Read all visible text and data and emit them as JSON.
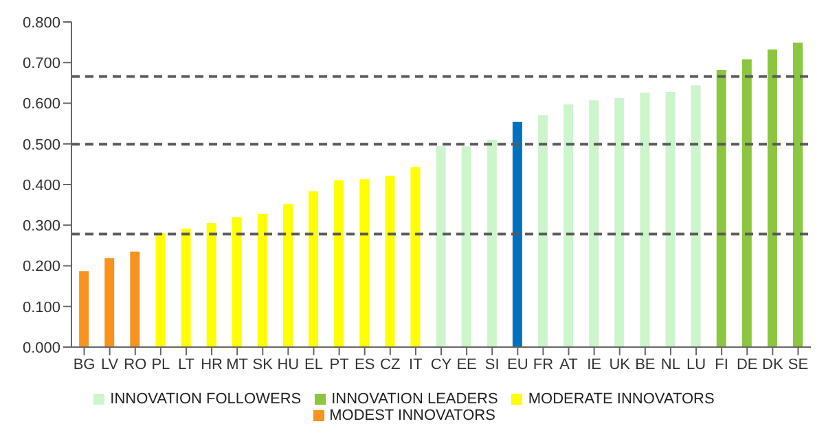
{
  "chart_data": {
    "type": "bar",
    "categories": [
      "BG",
      "LV",
      "RO",
      "PL",
      "LT",
      "HR",
      "MT",
      "SK",
      "HU",
      "EL",
      "PT",
      "ES",
      "CZ",
      "IT",
      "CY",
      "EE",
      "SI",
      "EU",
      "FR",
      "AT",
      "IE",
      "UK",
      "BE",
      "NL",
      "LU",
      "FI",
      "DE",
      "DK",
      "SE"
    ],
    "stacked": true,
    "series": [
      {
        "name": "MODEST INNOVATORS",
        "color": "#f7931e",
        "values": [
          0.187,
          0.219,
          0.235,
          null,
          null,
          null,
          null,
          null,
          null,
          null,
          null,
          null,
          null,
          null,
          null,
          null,
          null,
          null,
          null,
          null,
          null,
          null,
          null,
          null,
          null,
          null,
          null,
          null,
          null
        ]
      },
      {
        "name": "MODERATE INNOVATORS",
        "color": "#ffff00",
        "values": [
          null,
          null,
          null,
          0.28,
          0.291,
          0.305,
          0.32,
          0.328,
          0.352,
          0.383,
          0.41,
          0.413,
          0.421,
          0.443,
          null,
          null,
          null,
          null,
          null,
          null,
          null,
          null,
          null,
          null,
          null,
          null,
          null,
          null,
          null
        ]
      },
      {
        "name": "INNOVATION FOLLOWERS",
        "color": "#ccf5cc",
        "values": [
          null,
          null,
          null,
          null,
          null,
          null,
          null,
          null,
          null,
          null,
          null,
          null,
          null,
          null,
          0.494,
          0.494,
          0.51,
          null,
          0.57,
          0.597,
          0.607,
          0.613,
          0.626,
          0.628,
          0.644,
          null,
          null,
          null,
          null
        ]
      },
      {
        "color": "#0070c0",
        "values": [
          null,
          null,
          null,
          null,
          null,
          null,
          null,
          null,
          null,
          null,
          null,
          null,
          null,
          null,
          null,
          null,
          null,
          0.554,
          null,
          null,
          null,
          null,
          null,
          null,
          null,
          null,
          null,
          null,
          null
        ]
      },
      {
        "name": "INNOVATION LEADERS",
        "color": "#8cc63f",
        "values": [
          null,
          null,
          null,
          null,
          null,
          null,
          null,
          null,
          null,
          null,
          null,
          null,
          null,
          null,
          null,
          null,
          null,
          null,
          null,
          null,
          null,
          null,
          null,
          null,
          null,
          0.682,
          0.708,
          0.732,
          0.749
        ]
      }
    ],
    "ylim": [
      0,
      0.8
    ],
    "yticks": [
      {
        "value": 0,
        "label": "0.000"
      },
      {
        "value": 0.1,
        "label": "0.100"
      },
      {
        "value": 0.2,
        "label": "0.200"
      },
      {
        "value": 0.3,
        "label": "0.300"
      },
      {
        "value": 0.4,
        "label": "0.400"
      },
      {
        "value": 0.5,
        "label": "0.500"
      },
      {
        "value": 0.6,
        "label": "0.600"
      },
      {
        "value": 0.7,
        "label": "0.700"
      },
      {
        "value": 0.8,
        "label": "0.800"
      }
    ],
    "ref_lines": [
      {
        "axis": "y",
        "value": 0.278,
        "color": "#595959",
        "line_style": "dashed"
      },
      {
        "axis": "y",
        "value": 0.499,
        "color": "#595959",
        "line_style": "dashed"
      },
      {
        "axis": "y",
        "value": 0.666,
        "color": "#595959",
        "line_style": "dashed"
      }
    ],
    "legend": "bottom"
  }
}
